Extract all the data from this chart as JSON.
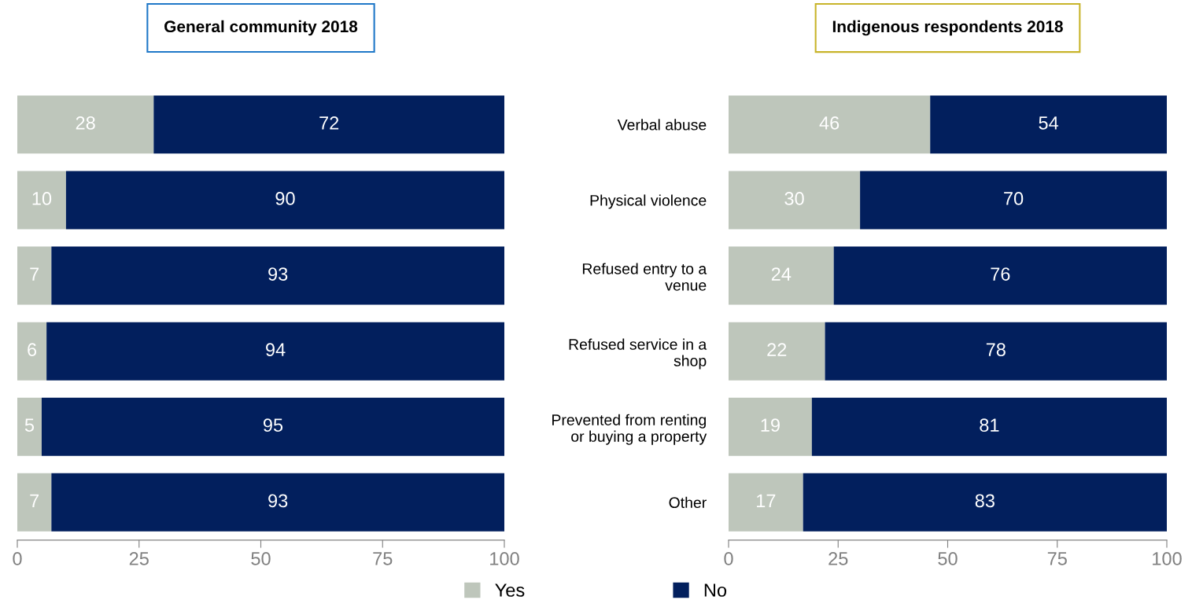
{
  "chart_data": [
    {
      "type": "bar",
      "orientation": "horizontal",
      "stacked": true,
      "title": "General community 2018",
      "categories": [
        null,
        null,
        null,
        null,
        null,
        null
      ],
      "tick_labels": "x",
      "xlim": [
        0,
        100
      ],
      "xticks": [
        0,
        25,
        50,
        75,
        100
      ],
      "data_labels": true,
      "legend": "bottom",
      "grid": false,
      "series": [
        {
          "name": "Yes",
          "color": "#bec6bb",
          "values": [
            28,
            10,
            7,
            6,
            5,
            7
          ]
        },
        {
          "name": "No",
          "color": "#021f5d",
          "values": [
            72,
            90,
            93,
            94,
            95,
            93
          ]
        }
      ]
    },
    {
      "type": "bar",
      "orientation": "horizontal",
      "stacked": true,
      "title": "Indigenous respondents 2018",
      "categories": [
        "Verbal abuse",
        "Physical violence",
        "Refused entry to a venue",
        "Refused service in a shop",
        "Prevented from renting or buying a property",
        "Other"
      ],
      "xlim": [
        0,
        100
      ],
      "xticks": [
        0,
        25,
        50,
        75,
        100
      ],
      "data_labels": true,
      "grid": false,
      "series": [
        {
          "color": "#bec6bb",
          "values": [
            46,
            30,
            24,
            22,
            19,
            17
          ]
        },
        {
          "color": "#021f5d",
          "values": [
            54,
            70,
            76,
            78,
            81,
            83
          ]
        }
      ]
    }
  ]
}
